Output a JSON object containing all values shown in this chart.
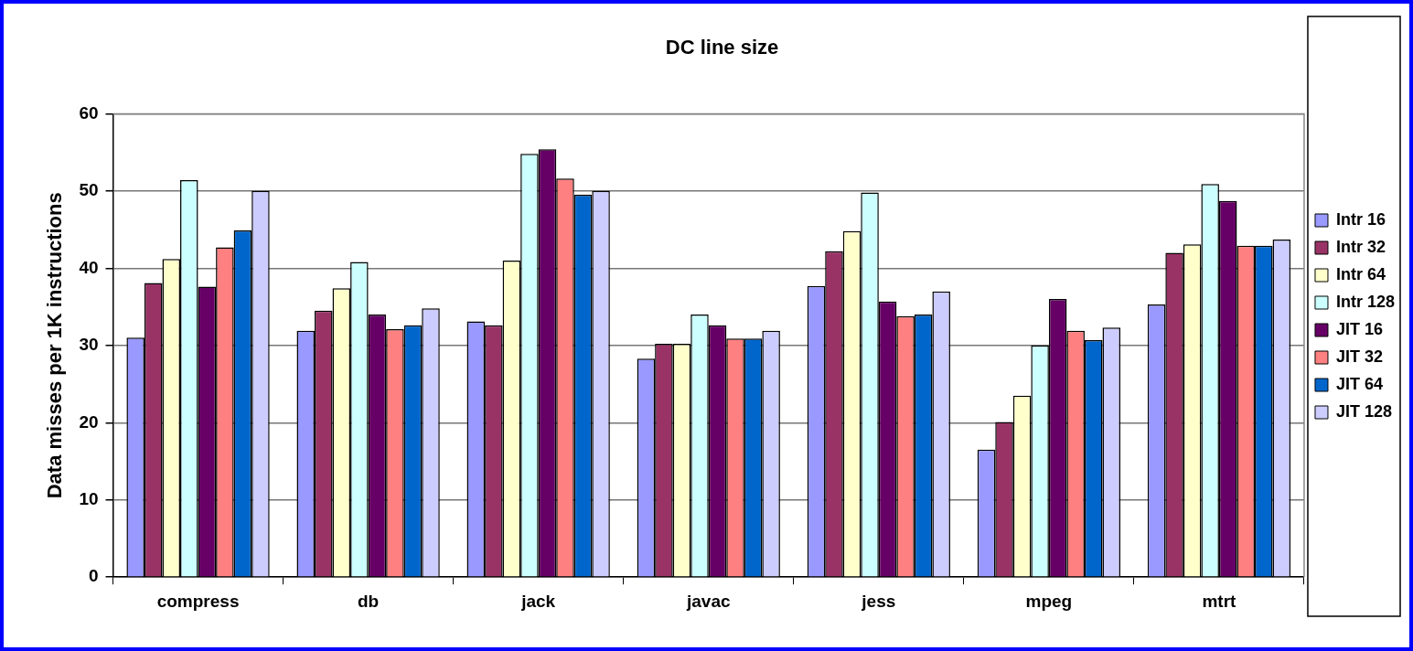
{
  "chart_data": {
    "type": "bar",
    "title": "DC line size",
    "ylabel": "Data misses per 1K instructions",
    "categories": [
      "compress",
      "db",
      "jack",
      "javac",
      "jess",
      "mpeg",
      "mtrt"
    ],
    "series": [
      {
        "name": "Intr 16",
        "color": "#9999ff",
        "values": [
          31,
          31.9,
          33.1,
          28.3,
          37.7,
          16.5,
          35.3
        ]
      },
      {
        "name": "Intr 32",
        "color": "#993366",
        "values": [
          38.1,
          34.5,
          32.6,
          30.2,
          42.2,
          20.1,
          42
        ]
      },
      {
        "name": "Intr 64",
        "color": "#ffffcc",
        "values": [
          41.2,
          37.4,
          41,
          30.2,
          44.8,
          23.5,
          43.1
        ]
      },
      {
        "name": "Intr 128",
        "color": "#ccffff",
        "values": [
          51.4,
          40.8,
          54.8,
          34,
          49.8,
          30,
          50.9
        ]
      },
      {
        "name": "JIT 16",
        "color": "#660066",
        "values": [
          37.6,
          34,
          55.4,
          32.6,
          35.7,
          36,
          48.7
        ]
      },
      {
        "name": "JIT 32",
        "color": "#ff8080",
        "values": [
          42.7,
          32.1,
          51.6,
          30.9,
          33.8,
          31.9,
          42.9
        ]
      },
      {
        "name": "JIT 64",
        "color": "#0066cc",
        "values": [
          44.9,
          32.6,
          49.5,
          30.9,
          34,
          30.7,
          42.9
        ]
      },
      {
        "name": "JIT 128",
        "color": "#ccccff",
        "values": [
          50,
          34.8,
          50,
          31.9,
          37,
          32.3,
          43.7
        ]
      }
    ],
    "ylim": [
      0,
      60
    ],
    "yticks": [
      0,
      10,
      20,
      30,
      40,
      50,
      60
    ],
    "grid": "y",
    "legend": "right"
  }
}
